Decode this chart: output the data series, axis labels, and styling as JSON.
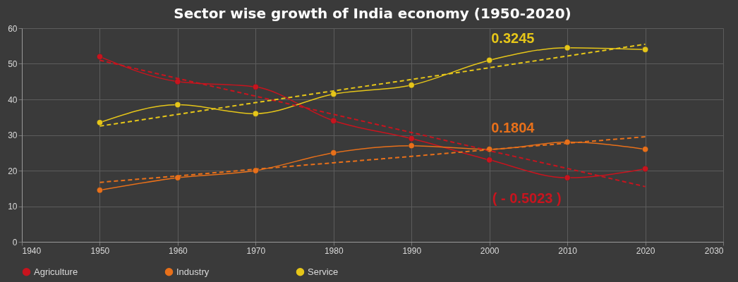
{
  "chart_data": {
    "type": "line",
    "title": "Sector wise growth of India economy (1950-2020)",
    "x": [
      1950,
      1960,
      1970,
      1980,
      1990,
      2000,
      2010,
      2020
    ],
    "series": [
      {
        "name": "Agriculture",
        "color": "#c8141e",
        "values": [
          52,
          45,
          43.5,
          34,
          29,
          23,
          18,
          20.5
        ]
      },
      {
        "name": "Industry",
        "color": "#e8701a",
        "values": [
          14.5,
          18,
          20,
          25,
          27,
          26,
          28,
          26
        ]
      },
      {
        "name": "Service",
        "color": "#e6c619",
        "values": [
          33.5,
          38.5,
          36,
          41.5,
          44,
          51,
          54.5,
          54
        ]
      },
      {
        "type": "line",
        "color": "#c8141e",
        "values": [
          51,
          45.9,
          40.9,
          35.8,
          30.7,
          25.6,
          20.6,
          15.5
        ],
        "line_style": "dashed",
        "marker": "none"
      },
      {
        "type": "line",
        "color": "#e8701a",
        "values": [
          16.7,
          18.5,
          20.4,
          22.2,
          24,
          25.9,
          27.7,
          29.5
        ],
        "line_style": "dashed",
        "marker": "none"
      },
      {
        "type": "line",
        "color": "#e6c619",
        "values": [
          32.5,
          35.8,
          39.1,
          42.4,
          45.6,
          48.9,
          52.2,
          55.5
        ],
        "line_style": "dashed",
        "marker": "none"
      }
    ],
    "annotations": [
      "( - 0.5023 )",
      "0.1804",
      "0.3245"
    ],
    "xlim": [
      1940,
      2030
    ],
    "xticks": [
      1940,
      1950,
      1960,
      1970,
      1980,
      1990,
      2000,
      2010,
      2020,
      2030
    ],
    "ylim": [
      0,
      60
    ],
    "yticks": [
      0,
      10,
      20,
      30,
      40,
      50,
      60
    ],
    "grid": true,
    "legend": "bottom",
    "marker": "circle",
    "line_style": "solid"
  }
}
